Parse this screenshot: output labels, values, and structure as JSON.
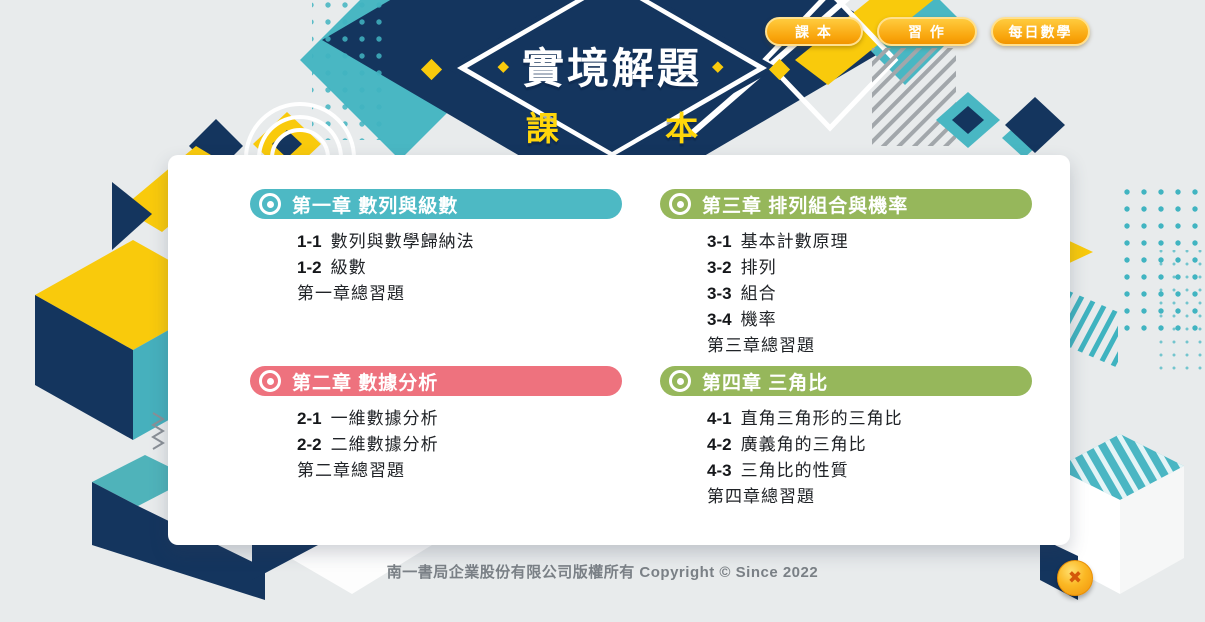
{
  "logo": {
    "title": "實境解題",
    "subtitle": "課  本",
    "accent_glyph": "◆"
  },
  "nav": {
    "buttons": [
      {
        "label": "課 本"
      },
      {
        "label": "習 作"
      },
      {
        "label": "每日數學"
      }
    ]
  },
  "chapters": [
    {
      "title": "第一章 數列與級數",
      "color": "#4db9c4",
      "items": [
        {
          "num": "1-1",
          "title": "數列與數學歸納法"
        },
        {
          "num": "1-2",
          "title": "級數"
        },
        {
          "num": "",
          "title": "第一章總習題"
        }
      ]
    },
    {
      "title": "第二章 數據分析",
      "color": "#ee727e",
      "items": [
        {
          "num": "2-1",
          "title": "一維數據分析"
        },
        {
          "num": "2-2",
          "title": "二維數據分析"
        },
        {
          "num": "",
          "title": "第二章總習題"
        }
      ]
    },
    {
      "title": "第三章 排列組合與機率",
      "color": "#96b75b",
      "items": [
        {
          "num": "3-1",
          "title": "基本計數原理"
        },
        {
          "num": "3-2",
          "title": "排列"
        },
        {
          "num": "3-3",
          "title": "組合"
        },
        {
          "num": "3-4",
          "title": "機率"
        },
        {
          "num": "",
          "title": "第三章總習題"
        }
      ]
    },
    {
      "title": "第四章 三角比",
      "color": "#96b75b",
      "items": [
        {
          "num": "4-1",
          "title": "直角三角形的三角比"
        },
        {
          "num": "4-2",
          "title": "廣義角的三角比"
        },
        {
          "num": "4-3",
          "title": "三角比的性質"
        },
        {
          "num": "",
          "title": "第四章總習題"
        }
      ]
    }
  ],
  "footer": {
    "copyright": "南一書局企業股份有限公司版權所有 Copyright © Since 2022"
  },
  "close_button": {
    "glyph": "✖"
  },
  "colors": {
    "navy": "#14355e",
    "yellow": "#f9ca0c",
    "teal": "#49b7c3",
    "background": "#e8ebec",
    "button_top": "#ffcb3e",
    "button_bottom": "#f29400"
  }
}
